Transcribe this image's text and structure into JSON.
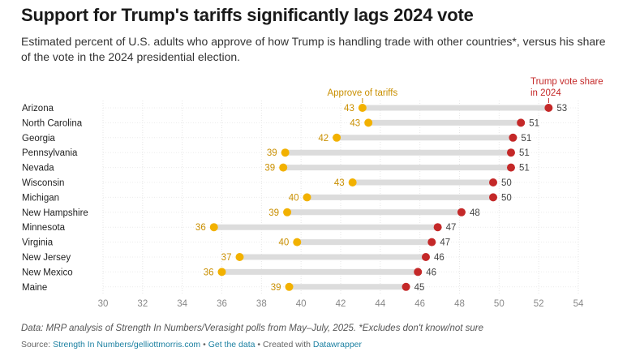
{
  "title": "Support for Trump's tariffs significantly lags 2024 vote",
  "subtitle": "Estimated percent of U.S. adults who approve of how Trump is handling trade with other countries*, versus his share of the vote in the 2024 presidential election.",
  "chart_data": {
    "type": "dot-range",
    "categories": [
      "Arizona",
      "North Carolina",
      "Georgia",
      "Pennsylvania",
      "Nevada",
      "Wisconsin",
      "Michigan",
      "New Hampshire",
      "Minnesota",
      "Virginia",
      "New Jersey",
      "New Mexico",
      "Maine"
    ],
    "series": [
      {
        "name": "Approve of tariffs",
        "color": "#f2b100",
        "label_color": "#c98f00",
        "plot_values": [
          43.1,
          43.4,
          41.8,
          39.2,
          39.1,
          42.6,
          40.3,
          39.3,
          35.6,
          39.8,
          36.9,
          36.0,
          39.4
        ],
        "labels": [
          "43",
          "43",
          "42",
          "39",
          "39",
          "43",
          "40",
          "39",
          "36",
          "40",
          "37",
          "36",
          "39"
        ]
      },
      {
        "name": "Trump vote share in 2024",
        "color": "#c42828",
        "label_color": "#444444",
        "plot_values": [
          52.5,
          51.1,
          50.7,
          50.6,
          50.6,
          49.7,
          49.7,
          48.1,
          46.9,
          46.6,
          46.3,
          45.9,
          45.3
        ],
        "labels": [
          "53",
          "51",
          "51",
          "51",
          "51",
          "50",
          "50",
          "48",
          "47",
          "47",
          "46",
          "46",
          "45"
        ]
      }
    ],
    "legend_labels": {
      "approve": "Approve of tariffs",
      "vote_line1": "Trump vote share",
      "vote_line2": "in 2024"
    },
    "x_range": [
      30,
      54
    ],
    "x_ticks": [
      30,
      32,
      34,
      36,
      38,
      40,
      42,
      44,
      46,
      48,
      50,
      52,
      54
    ],
    "xlabel": "",
    "ylabel": "",
    "grid": true,
    "range_bar_color": "#dcdcdc"
  },
  "notes": "Data: MRP analysis of Strength In Numbers/Verasight polls from May–July, 2025. *Excludes don't know/not sure",
  "source": {
    "prefix": "Source: ",
    "link": "Strength In Numbers/gelliottmorris.com",
    "sep1": " • ",
    "get_data": "Get the data",
    "sep2": " • Created with ",
    "tool": "Datawrapper"
  }
}
